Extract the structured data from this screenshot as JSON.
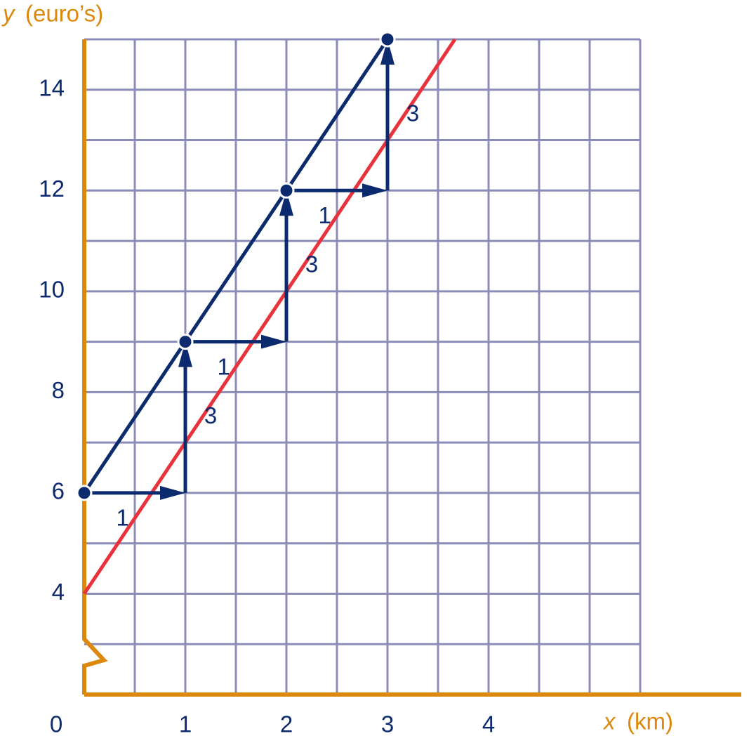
{
  "chart_data": {
    "type": "line",
    "x_label_var": "x",
    "x_label_unit": "(km)",
    "y_label_var": "y",
    "y_label_unit": "(euro’s)",
    "xlim": [
      0,
      6.5
    ],
    "ylim": [
      2,
      15
    ],
    "xticks": [
      0,
      1,
      2,
      3,
      4
    ],
    "yticks": [
      4,
      6,
      8,
      10,
      12,
      14
    ],
    "xgrid": [
      0.5,
      1,
      1.5,
      2,
      2.5,
      3,
      3.5,
      4,
      4.5,
      5,
      5.5
    ],
    "ygrid": [
      3,
      4,
      5,
      6,
      7,
      8,
      9,
      10,
      11,
      12,
      13,
      14,
      15
    ],
    "grid_color": "#8c8cb8",
    "axis_color": "#dc880c",
    "series": [
      {
        "color": "#0c2a6e",
        "x": [
          0,
          1,
          2,
          3
        ],
        "values": [
          6,
          9,
          12,
          15
        ],
        "markers": true
      },
      {
        "color": "#e8333c",
        "x": [
          0,
          3.667
        ],
        "values": [
          4,
          15
        ],
        "markers": false
      }
    ],
    "steps": [
      {
        "x": 0,
        "y": 6,
        "dx": 1,
        "dy": 3
      },
      {
        "x": 1,
        "y": 9,
        "dx": 1,
        "dy": 3
      },
      {
        "x": 2,
        "y": 12,
        "dx": 1,
        "dy": 3
      }
    ],
    "step_color": "#0c2a6e"
  }
}
